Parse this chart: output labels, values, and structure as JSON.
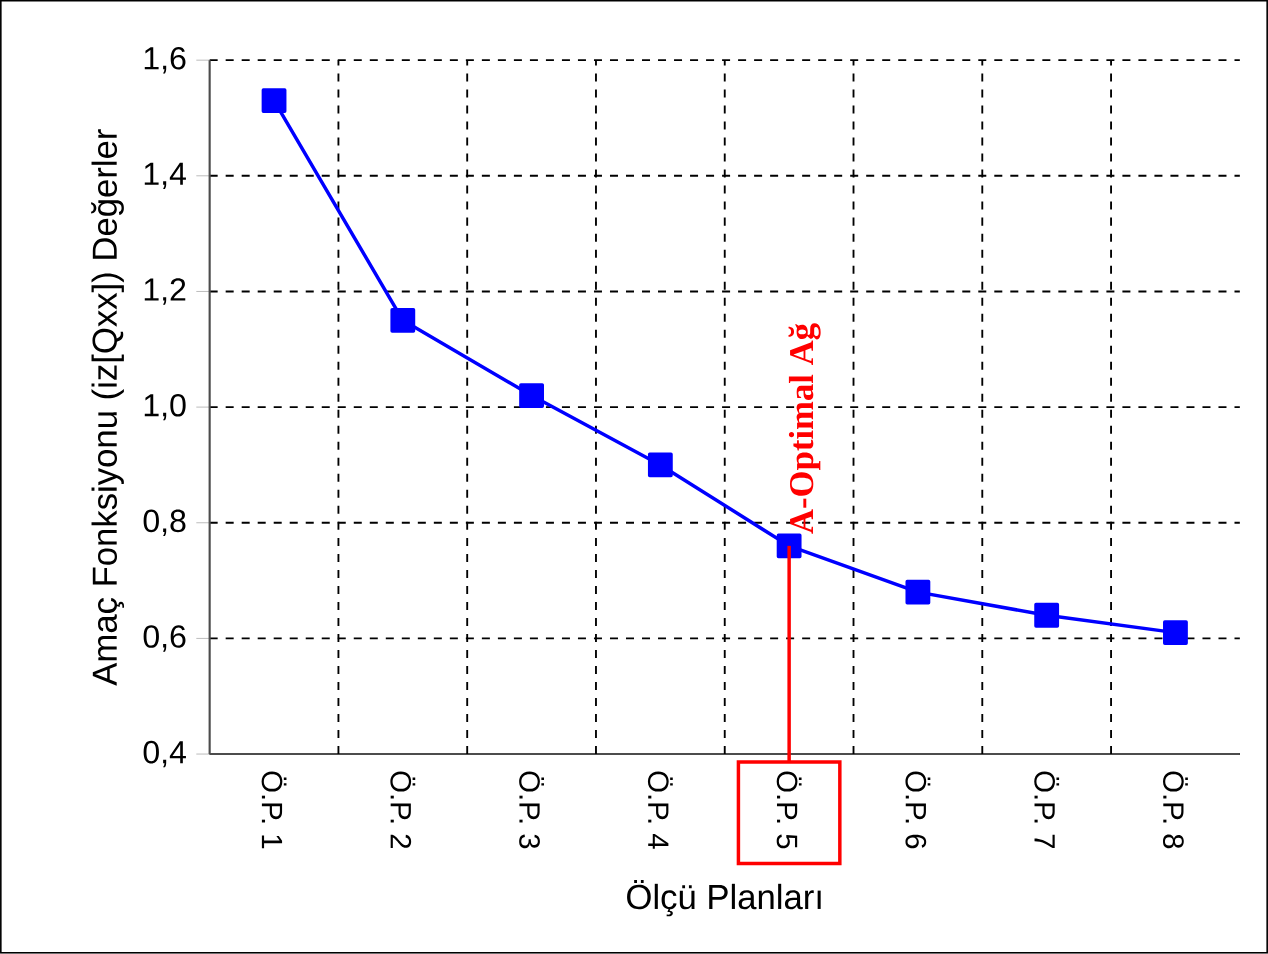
{
  "chart_data": {
    "type": "line",
    "xlabel": "Ölçü Planları",
    "ylabel": "Amaç Fonksiyonu (iz[Qxx]) Değerler",
    "categories": [
      "Ö.P. 1",
      "Ö.P. 2",
      "Ö.P. 3",
      "Ö.P. 4",
      "Ö.P. 5",
      "Ö.P. 6",
      "Ö.P. 7",
      "Ö.P. 8"
    ],
    "series": [
      {
        "color": "#0000ff",
        "values": [
          1.53,
          1.15,
          1.02,
          0.9,
          0.76,
          0.68,
          0.64,
          0.61
        ]
      }
    ],
    "ylim": [
      0.4,
      1.6
    ],
    "yticks": [
      {
        "value": 0.4,
        "label": "0,4"
      },
      {
        "value": 0.6,
        "label": "0,6"
      },
      {
        "value": 0.8,
        "label": "0,8"
      },
      {
        "value": 1.0,
        "label": "1,0"
      },
      {
        "value": 1.2,
        "label": "1,2"
      },
      {
        "value": 1.4,
        "label": "1,4"
      },
      {
        "value": 1.6,
        "label": "1,6"
      }
    ],
    "grid": true,
    "marker": "square",
    "line_style": "solid",
    "annotations": [
      {
        "text": "A-Optimal Ağ",
        "x": "Ö.P. 5",
        "y": 0.76
      }
    ]
  }
}
